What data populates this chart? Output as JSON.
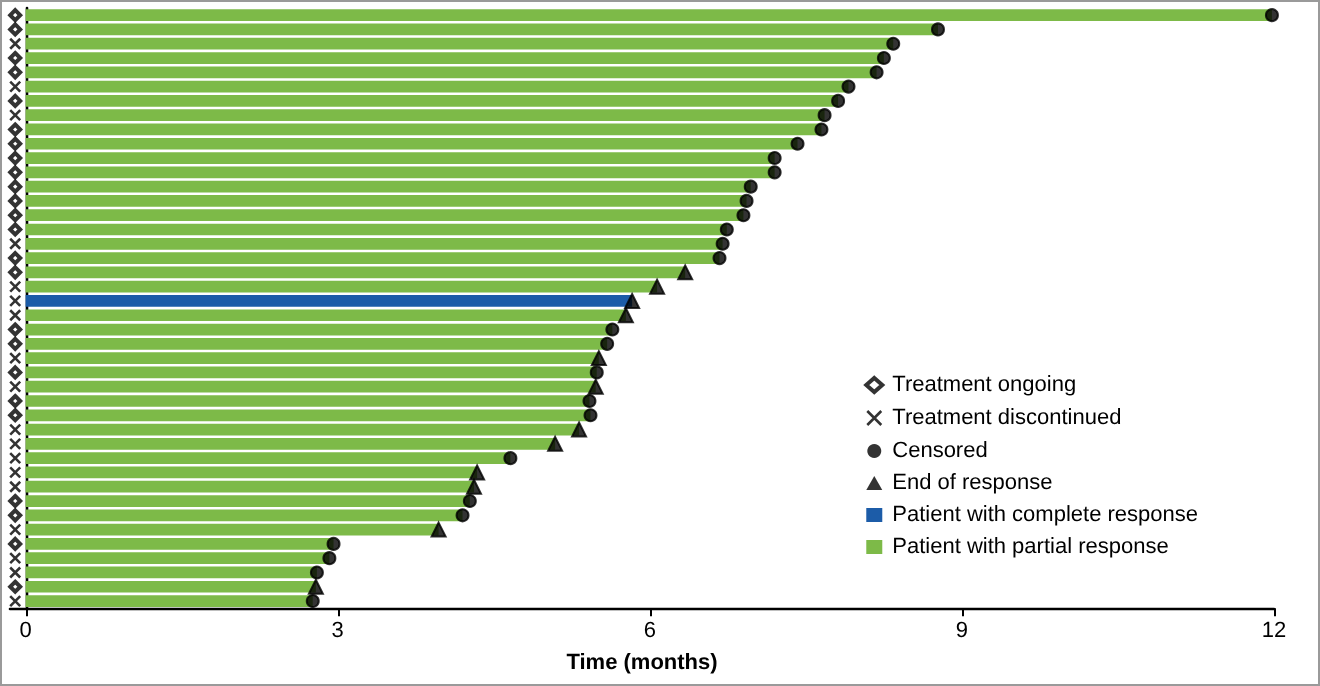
{
  "chart_data": {
    "type": "bar",
    "orientation": "horizontal",
    "stacked": true,
    "xlabel": "Time (months)",
    "categories": [
      null,
      null,
      null,
      null,
      null,
      null,
      null,
      null,
      null,
      null,
      null,
      null,
      null,
      null,
      null,
      null,
      null,
      null,
      null,
      null,
      null,
      null,
      null,
      null,
      null,
      null,
      null,
      null,
      null,
      null,
      null,
      null,
      null,
      null,
      null,
      null,
      null,
      null,
      null,
      null,
      null,
      null
    ],
    "xlim": [
      -0.15,
      12
    ],
    "xticks": [
      0,
      3,
      6,
      9,
      12
    ],
    "legend": "bottom right",
    "series": [
      {
        "name": "Treatment ongoing",
        "type": "scatter",
        "marker": "diamond",
        "color": "#000000",
        "values": [
          -0.1,
          -0.1,
          null,
          -0.1,
          -0.1,
          null,
          -0.1,
          null,
          -0.1,
          -0.1,
          -0.1,
          -0.1,
          -0.1,
          -0.1,
          -0.1,
          -0.1,
          null,
          -0.1,
          -0.1,
          null,
          null,
          null,
          -0.1,
          -0.1,
          null,
          -0.1,
          null,
          -0.1,
          -0.1,
          null,
          null,
          null,
          null,
          null,
          -0.1,
          -0.1,
          null,
          -0.1,
          null,
          null,
          -0.1,
          null
        ]
      },
      {
        "name": "Treatment discontinued",
        "type": "scatter",
        "marker": "cross",
        "color": "#000000",
        "values": [
          null,
          null,
          -0.1,
          null,
          null,
          -0.1,
          null,
          -0.1,
          null,
          null,
          null,
          null,
          null,
          null,
          null,
          null,
          -0.1,
          null,
          null,
          -0.1,
          -0.1,
          -0.1,
          null,
          null,
          -0.1,
          null,
          -0.1,
          null,
          null,
          -0.1,
          -0.1,
          -0.1,
          -0.1,
          -0.1,
          null,
          null,
          -0.1,
          null,
          -0.1,
          -0.1,
          null,
          -0.1
        ]
      },
      {
        "name": "Censored",
        "type": "scatter",
        "marker": "circle",
        "color": "#000000",
        "values": [
          11.98,
          8.77,
          8.34,
          8.25,
          8.18,
          7.91,
          7.81,
          7.68,
          7.65,
          7.42,
          7.2,
          7.2,
          6.97,
          6.93,
          6.9,
          6.74,
          6.7,
          6.67,
          null,
          null,
          null,
          null,
          5.64,
          5.59,
          null,
          5.49,
          null,
          5.42,
          5.43,
          null,
          null,
          4.66,
          null,
          null,
          4.27,
          4.2,
          null,
          2.96,
          2.92,
          2.8,
          null,
          2.76
        ]
      },
      {
        "name": "End of response",
        "type": "scatter",
        "marker": "triangle",
        "color": "#000000",
        "values": [
          null,
          null,
          null,
          null,
          null,
          null,
          null,
          null,
          null,
          null,
          null,
          null,
          null,
          null,
          null,
          null,
          null,
          null,
          6.34,
          6.07,
          5.83,
          5.77,
          null,
          null,
          5.51,
          null,
          5.48,
          null,
          null,
          5.32,
          5.09,
          null,
          4.34,
          4.31,
          null,
          null,
          3.97,
          null,
          null,
          null,
          2.79,
          null
        ]
      },
      {
        "name": "Patient with complete response",
        "color": "#1c5ca8",
        "values": [
          null,
          null,
          null,
          null,
          null,
          null,
          null,
          null,
          null,
          null,
          null,
          null,
          null,
          null,
          null,
          null,
          null,
          null,
          null,
          null,
          5.83,
          null,
          null,
          null,
          null,
          null,
          null,
          null,
          null,
          null,
          null,
          null,
          null,
          null,
          null,
          null,
          null,
          null,
          null,
          null,
          null,
          null
        ]
      },
      {
        "name": "Patient with partial response",
        "color": "#7dba48",
        "values": [
          11.98,
          8.77,
          8.34,
          8.25,
          8.18,
          7.91,
          7.81,
          7.68,
          7.65,
          7.42,
          7.2,
          7.2,
          6.97,
          6.93,
          6.9,
          6.74,
          6.7,
          6.67,
          6.34,
          6.07,
          null,
          5.77,
          5.64,
          5.59,
          5.51,
          5.49,
          5.48,
          5.42,
          5.43,
          5.32,
          5.09,
          4.66,
          4.34,
          4.31,
          4.27,
          4.2,
          3.97,
          2.96,
          2.92,
          2.8,
          2.79,
          2.76
        ]
      }
    ]
  }
}
